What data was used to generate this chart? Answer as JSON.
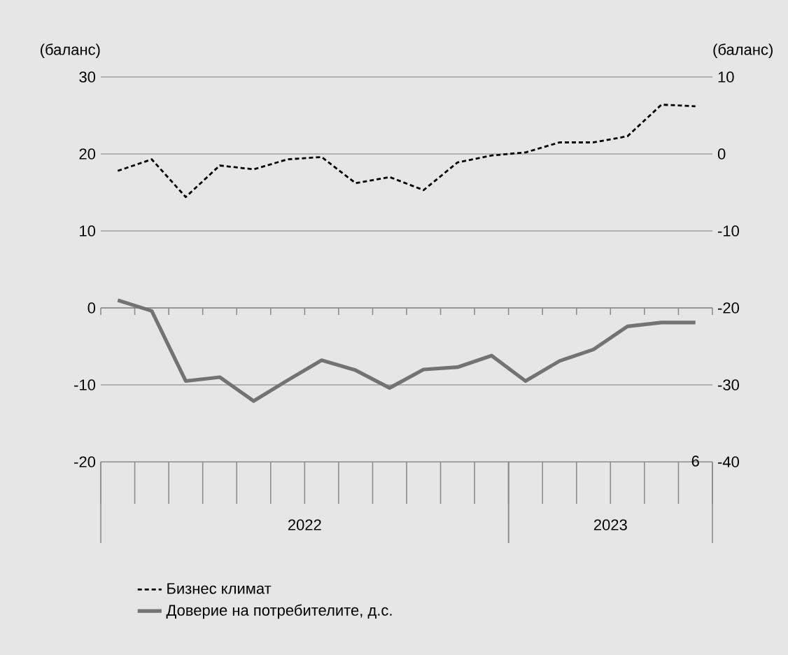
{
  "chart_data": {
    "type": "line",
    "ylabel": "(баланс)",
    "y2label": "(баланс)",
    "categories": [
      null,
      null,
      null,
      null,
      null,
      null,
      null,
      null,
      null,
      null,
      null,
      null,
      null,
      null,
      null,
      null,
      null,
      "6"
    ],
    "annotations": [
      "2022",
      "2023"
    ],
    "series": [
      {
        "name": "Бизнес климат",
        "color": "#000000",
        "line_style": "dashed",
        "values": [
          17.8,
          19.3,
          14.4,
          18.5,
          18.0,
          19.3,
          19.6,
          16.2,
          17.0,
          15.3,
          18.9,
          19.8,
          20.2,
          21.5,
          21.5,
          22.3,
          26.4,
          26.2
        ]
      },
      {
        "name": "Доверие на потребителите, д.с.",
        "color": "#737373",
        "line_style": "solid",
        "axis": "y2",
        "values": [
          -19.0,
          -20.4,
          -29.5,
          -29.0,
          -32.1,
          -29.4,
          -26.8,
          -28.1,
          -30.4,
          -28.0,
          -27.7,
          -26.2,
          -29.5,
          -26.9,
          -25.4,
          -22.4,
          -21.9,
          -21.9
        ]
      }
    ],
    "ylim": [
      -20,
      30
    ],
    "yticks": [
      -20,
      -10,
      0,
      10,
      20,
      30
    ],
    "y2lim": [
      -40,
      10
    ],
    "y2ticks": [
      -40,
      -30,
      -20,
      -10,
      0,
      10
    ],
    "ref_lines": [
      {
        "axis": "y",
        "value": 0
      }
    ],
    "grid": "y",
    "legend": "bottom",
    "marker": "none"
  }
}
